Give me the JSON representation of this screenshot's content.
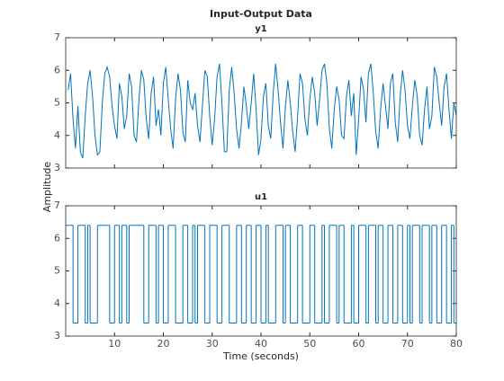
{
  "chart_data": [
    {
      "type": "line",
      "title": "Input-Output Data",
      "subtitle": "y1",
      "ylabel": "Amplitude",
      "color": "#0072bd",
      "xlim": [
        0,
        80
      ],
      "ylim": [
        3,
        7
      ],
      "xticks": [
        10,
        20,
        30,
        40,
        50,
        60,
        70,
        80
      ],
      "yticks": [
        3,
        4,
        5,
        6,
        7
      ],
      "x": [
        0.5,
        1,
        1.5,
        2,
        2.5,
        3,
        3.5,
        4,
        4.5,
        5,
        5.5,
        6,
        6.5,
        7,
        7.5,
        8,
        8.5,
        9,
        9.5,
        10,
        10.5,
        11,
        11.5,
        12,
        12.5,
        13,
        13.5,
        14,
        14.5,
        15,
        15.5,
        16,
        16.5,
        17,
        17.5,
        18,
        18.5,
        19,
        19.5,
        20,
        20.5,
        21,
        21.5,
        22,
        22.5,
        23,
        23.5,
        24,
        24.5,
        25,
        25.5,
        26,
        26.5,
        27,
        27.5,
        28,
        28.5,
        29,
        29.5,
        30,
        30.5,
        31,
        31.5,
        32,
        32.5,
        33,
        33.5,
        34,
        34.5,
        35,
        35.5,
        36,
        36.5,
        37,
        37.5,
        38,
        38.5,
        39,
        39.5,
        40,
        40.5,
        41,
        41.5,
        42,
        42.5,
        43,
        43.5,
        44,
        44.5,
        45,
        45.5,
        46,
        46.5,
        47,
        47.5,
        48,
        48.5,
        49,
        49.5,
        50,
        50.5,
        51,
        51.5,
        52,
        52.5,
        53,
        53.5,
        54,
        54.5,
        55,
        55.5,
        56,
        56.5,
        57,
        57.5,
        58,
        58.5,
        59,
        59.5,
        60,
        60.5,
        61,
        61.5,
        62,
        62.5,
        63,
        63.5,
        64,
        64.5,
        65,
        65.5,
        66,
        66.5,
        67,
        67.5,
        68,
        68.5,
        69,
        69.5,
        70,
        70.5,
        71,
        71.5,
        72,
        72.5,
        73,
        73.5,
        74,
        74.5,
        75,
        75.5,
        76,
        76.5,
        77,
        77.5,
        78,
        78.5,
        79,
        79.5,
        80
      ],
      "values": [
        5.4,
        5.9,
        4.5,
        3.6,
        4.9,
        3.5,
        3.3,
        4.6,
        5.6,
        6.0,
        5.2,
        4.0,
        3.4,
        3.5,
        5.0,
        5.9,
        6.1,
        5.8,
        4.9,
        4.3,
        3.9,
        5.6,
        5.2,
        4.2,
        4.6,
        5.9,
        5.5,
        4.0,
        3.8,
        5.1,
        6.0,
        5.7,
        4.5,
        3.9,
        5.3,
        5.8,
        4.3,
        4.8,
        4.0,
        5.6,
        6.1,
        5.1,
        4.2,
        3.6,
        5.1,
        5.9,
        5.4,
        4.1,
        3.8,
        5.7,
        5.0,
        4.8,
        5.3,
        4.3,
        3.8,
        4.9,
        6.0,
        5.8,
        4.6,
        3.7,
        4.5,
        5.8,
        6.2,
        5.0,
        3.5,
        3.5,
        5.4,
        6.1,
        5.3,
        4.2,
        3.6,
        4.4,
        5.5,
        4.9,
        4.2,
        5.0,
        5.9,
        4.8,
        3.4,
        3.9,
        5.2,
        5.6,
        4.3,
        3.9,
        5.3,
        6.2,
        5.4,
        4.4,
        3.6,
        4.9,
        5.7,
        5.0,
        4.1,
        3.5,
        4.6,
        5.9,
        5.6,
        4.5,
        4.0,
        5.1,
        5.8,
        5.3,
        4.3,
        5.1,
        6.0,
        6.2,
        5.6,
        4.2,
        3.6,
        4.8,
        5.5,
        5.1,
        4.0,
        3.9,
        5.2,
        5.7,
        4.6,
        5.3,
        3.4,
        4.5,
        5.8,
        5.4,
        4.4,
        5.9,
        6.2,
        5.3,
        4.1,
        3.6,
        4.8,
        5.6,
        4.9,
        4.2,
        5.6,
        5.9,
        4.4,
        3.8,
        5.2,
        6.0,
        5.4,
        4.3,
        3.9,
        4.9,
        5.7,
        5.2,
        4.0,
        3.7,
        4.8,
        5.5,
        4.2,
        4.6,
        6.1,
        5.8,
        5.0,
        4.3,
        5.5,
        5.9,
        4.8,
        3.9,
        5.0,
        4.6
      ]
    },
    {
      "type": "stairs",
      "subtitle": "u1",
      "xlabel": "Time (seconds)",
      "color": "#0072bd",
      "xlim": [
        0,
        80
      ],
      "ylim": [
        3,
        7
      ],
      "xticks": [
        10,
        20,
        30,
        40,
        50,
        60,
        70,
        80
      ],
      "yticks": [
        3,
        4,
        5,
        6,
        7
      ],
      "x": [
        0,
        1.5,
        2.5,
        4,
        4.5,
        5,
        6.5,
        9,
        10,
        11,
        11.5,
        12.5,
        13,
        16,
        17,
        18.5,
        19,
        20,
        21,
        22.5,
        24,
        25,
        26,
        26.5,
        27,
        28.5,
        29.5,
        31,
        32,
        33.5,
        35,
        36,
        37,
        38,
        39,
        40,
        41,
        41.5,
        43,
        44.5,
        45,
        46,
        47.5,
        48.5,
        50,
        51,
        52.5,
        53,
        54,
        55.5,
        56,
        57,
        58.5,
        59,
        60,
        61.5,
        62,
        63.5,
        64,
        65,
        66,
        67,
        68,
        69,
        70,
        70.5,
        71,
        72.5,
        73,
        74.5,
        75,
        76,
        77,
        78,
        79,
        79.5
      ],
      "values": [
        6.4,
        3.4,
        6.4,
        3.4,
        6.4,
        3.4,
        6.4,
        3.4,
        6.4,
        3.4,
        6.4,
        3.4,
        6.4,
        3.4,
        6.4,
        3.4,
        6.4,
        3.4,
        6.4,
        3.4,
        6.4,
        3.4,
        6.4,
        3.4,
        6.4,
        3.4,
        6.4,
        3.4,
        6.4,
        3.4,
        6.4,
        3.4,
        6.4,
        3.4,
        6.4,
        3.4,
        6.4,
        3.4,
        6.4,
        3.4,
        6.4,
        3.4,
        6.4,
        3.4,
        6.4,
        3.4,
        6.4,
        3.4,
        6.4,
        3.4,
        6.4,
        3.4,
        6.4,
        3.4,
        6.4,
        3.4,
        6.4,
        3.4,
        6.4,
        3.4,
        6.4,
        3.4,
        6.4,
        3.4,
        6.4,
        3.4,
        6.4,
        3.4,
        6.4,
        3.4,
        6.4,
        3.4,
        6.4,
        3.4,
        6.4,
        3.4
      ]
    }
  ]
}
